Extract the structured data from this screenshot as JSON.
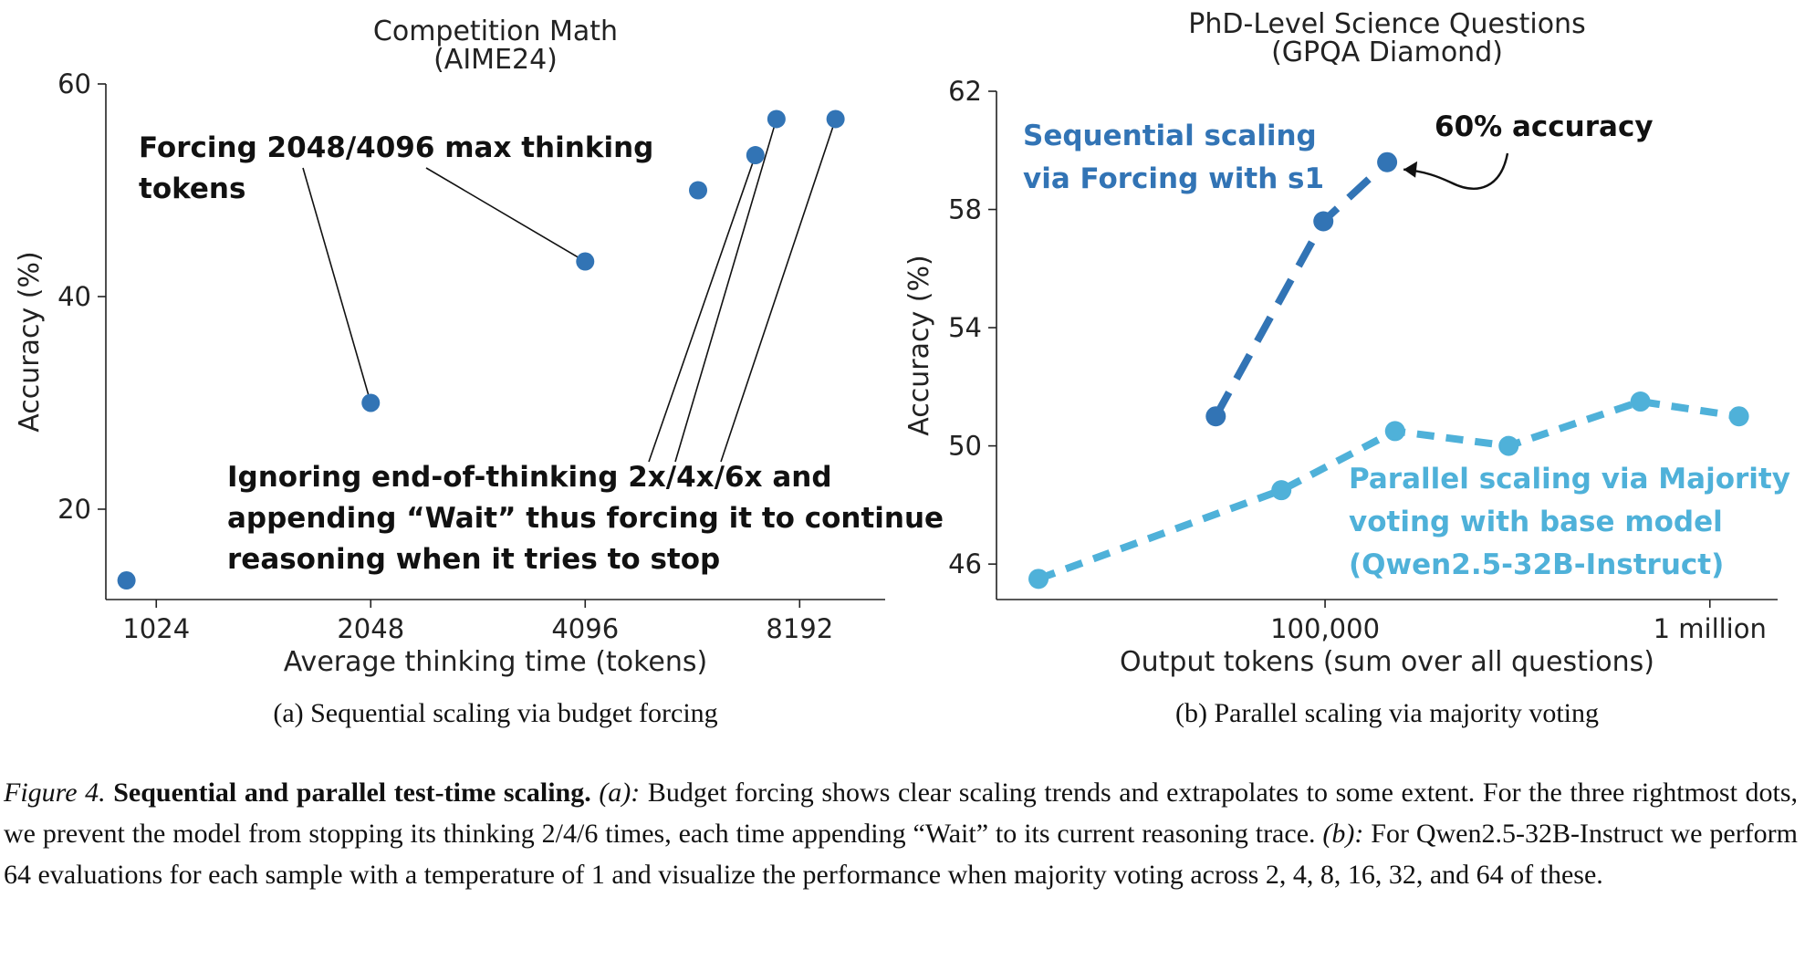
{
  "chart_data": [
    {
      "type": "scatter",
      "title": "Competition Math\n(AIME24)",
      "xlabel": "Average thinking time (tokens)",
      "ylabel": "Accuracy (%)",
      "xscale": "log2",
      "xlim": [
        870,
        10800
      ],
      "ylim": [
        11.5,
        60
      ],
      "xticks": [
        1024,
        2048,
        4096,
        8192
      ],
      "xtick_labels": [
        "1024",
        "2048",
        "4096",
        "8192"
      ],
      "yticks": [
        20,
        40,
        60
      ],
      "ytick_labels": [
        "20",
        "40",
        "60"
      ],
      "grid": false,
      "color": "#3274b5",
      "points": [
        {
          "x": 930,
          "y": 13.3
        },
        {
          "x": 2048,
          "y": 30.0
        },
        {
          "x": 4096,
          "y": 43.3
        },
        {
          "x": 5900,
          "y": 50.0
        },
        {
          "x": 7100,
          "y": 53.3
        },
        {
          "x": 7600,
          "y": 56.7
        },
        {
          "x": 9200,
          "y": 56.7
        }
      ],
      "annotations": [
        {
          "text": "Forcing 2048/4096 max thinking\ntokens",
          "targets": [
            1,
            2
          ]
        },
        {
          "text": "Ignoring end-of-thinking 2x/4x/6x and\nappending “Wait” thus forcing it to continue\nreasoning when it tries to stop",
          "targets": [
            4,
            5,
            6
          ]
        }
      ],
      "subcaption": "(a)  Sequential scaling via budget forcing"
    },
    {
      "type": "line",
      "title": "PhD-Level Science Questions\n(GPQA Diamond)",
      "xlabel": "Output tokens (sum over all questions)",
      "ylabel": "Accuracy (%)",
      "xscale": "log10",
      "xlim": [
        14000,
        1500000
      ],
      "ylim": [
        44.8,
        62
      ],
      "xticks": [
        100000,
        1000000
      ],
      "xtick_labels": [
        "100,000",
        "1 million"
      ],
      "yticks": [
        46,
        50,
        54,
        58,
        62
      ],
      "ytick_labels": [
        "46",
        "50",
        "54",
        "58",
        "62"
      ],
      "grid": false,
      "series": [
        {
          "name": "Sequential scaling\nvia Forcing with s1",
          "color": "#3274b5",
          "x": [
            52000,
            99000,
            145000
          ],
          "y": [
            51.0,
            57.6,
            59.6
          ]
        },
        {
          "name": "Parallel scaling via Majority\nvoting with base model\n(Qwen2.5-32B-Instruct)",
          "color": "#4fb1d9",
          "x": [
            18000,
            77000,
            152000,
            300000,
            660000,
            1190000
          ],
          "y": [
            45.5,
            48.5,
            50.5,
            50.0,
            51.5,
            51.0
          ]
        }
      ],
      "annotations": [
        {
          "text": "60% accuracy",
          "target_series": 0,
          "target_index": 2
        }
      ],
      "subcaption": "(b)  Parallel scaling via majority voting"
    }
  ],
  "caption": {
    "label": "Figure 4.",
    "title": "Sequential and parallel test-time scaling.",
    "a_label": "(a):",
    "a_text": "Budget forcing shows clear scaling trends and extrapolates to some extent. For the three rightmost dots, we prevent the model from stopping its thinking 2/4/6 times, each time appending “Wait” to its current reasoning trace.",
    "b_label": "(b):",
    "b_text": "For Qwen2.5-32B-Instruct we perform 64 evaluations for each sample with a temperature of 1 and visualize the performance when majority voting across 2, 4, 8, 16, 32, and 64 of these."
  }
}
